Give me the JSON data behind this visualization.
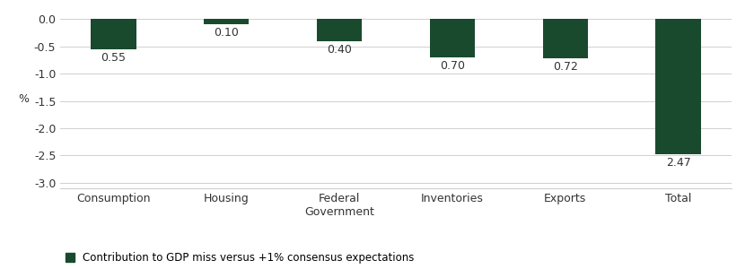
{
  "categories": [
    "Consumption",
    "Housing",
    "Federal\nGovernment",
    "Inventories",
    "Exports",
    "Total"
  ],
  "values": [
    -0.55,
    -0.1,
    -0.4,
    -0.7,
    -0.72,
    -2.47
  ],
  "labels": [
    "0.55",
    "0.10",
    "0.40",
    "0.70",
    "0.72",
    "2.47"
  ],
  "bar_color": "#1a4a2e",
  "bar_width": 0.4,
  "ylim": [
    -3.1,
    0.15
  ],
  "yticks": [
    0.0,
    -0.5,
    -1.0,
    -1.5,
    -2.0,
    -2.5,
    -3.0
  ],
  "ytick_labels": [
    "0.0",
    "-0.5",
    "-1.0",
    "-1.5",
    "-2.0",
    "-2.5",
    "-3.0"
  ],
  "ylabel": "%",
  "legend_label": "Contribution to GDP miss versus +1% consensus expectations",
  "background_color": "#ffffff",
  "grid_color": "#d0d0d0",
  "label_fontsize": 9,
  "tick_fontsize": 9
}
